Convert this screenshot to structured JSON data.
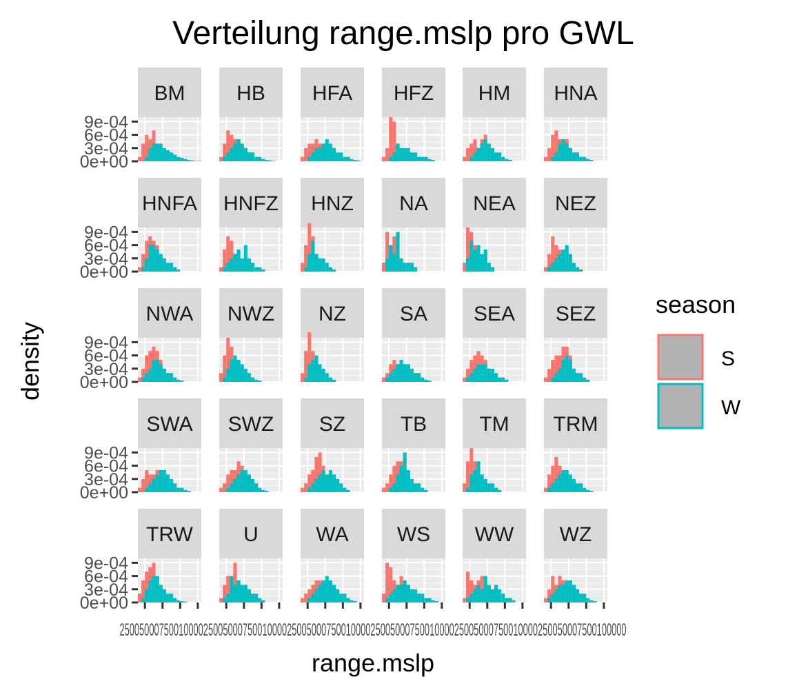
{
  "chart_data": {
    "type": "histogram",
    "title": "Verteilung range.mslp pro GWL",
    "xlabel": "range.mslp",
    "ylabel": "density",
    "x_ticks": [
      "2500",
      "5000",
      "7500",
      "10000"
    ],
    "x_ticks_rendered": "2500500075001000025005000750010000250050007500100002500500075001000025005000750010000250050007500100000",
    "y_ticks": [
      "0e+00",
      "3e-04",
      "6e-04",
      "9e-04"
    ],
    "xlim": [
      1500,
      10500
    ],
    "ylim": [
      0,
      0.001
    ],
    "grid": true,
    "facet_layout": {
      "columns": 6,
      "rows": 5
    },
    "legend": {
      "title": "season",
      "placement": "right",
      "entries": [
        {
          "label": "S",
          "color": "#F8766D"
        },
        {
          "label": "W",
          "color": "#00BFC4"
        }
      ]
    },
    "bin_start": 1500,
    "bin_width": 500,
    "panels": [
      {
        "label": "BM",
        "S": [
          0.0001,
          0.0004,
          0.0006,
          0.0005,
          0.0007,
          0.0004,
          0.0003,
          0.0002,
          0.0001,
          5e-05
        ],
        "W": [
          0,
          0,
          0.0001,
          0.0003,
          0.0004,
          0.0004,
          0.0004,
          0.0003,
          0.00025,
          0.0002,
          0.00015,
          0.0001,
          8e-05,
          5e-05,
          3e-05,
          2e-05,
          1e-05,
          1e-05
        ]
      },
      {
        "label": "HB",
        "S": [
          0.0001,
          0.0004,
          0.0007,
          0.0006,
          0.0005,
          0.0005,
          0.0004,
          0.0003,
          0.0002,
          0.0001
        ],
        "W": [
          0,
          0.0001,
          0.0002,
          0.0003,
          0.0004,
          0.0005,
          0.0004,
          0.0003,
          0.0002,
          0.0002,
          0.0001,
          0.0001,
          5e-05,
          3e-05,
          2e-05,
          1e-05
        ]
      },
      {
        "label": "HFA",
        "S": [
          0.0001,
          0.0003,
          0.0004,
          0.0004,
          0.0005,
          0.0004,
          0.0004,
          0.0003,
          0.0002,
          0.0001
        ],
        "W": [
          0,
          0,
          0.0001,
          0.0002,
          0.0003,
          0.0003,
          0.0004,
          0.0005,
          0.0004,
          0.0003,
          0.0002,
          0.0002,
          0.0001,
          0.0001,
          5e-05,
          3e-05,
          2e-05
        ]
      },
      {
        "label": "HFZ",
        "S": [
          0.0001,
          0.0003,
          0.001,
          0.0009,
          0.0004,
          0.0003,
          0.0002,
          0.0002,
          0.0001
        ],
        "W": [
          0,
          0,
          0.0001,
          0.0002,
          0.0004,
          0.0003,
          0.0003,
          0.0003,
          0.0002,
          0.0002,
          0.0001,
          0.0001,
          0.0001,
          5e-05,
          3e-05
        ]
      },
      {
        "label": "HM",
        "S": [
          0.0001,
          0.0003,
          0.0004,
          0.0005,
          0.0003,
          0.0005,
          0.0006,
          0.0003,
          0.0002,
          0.0001
        ],
        "W": [
          0,
          0,
          0.0001,
          0.0002,
          0.0003,
          0.0004,
          0.0005,
          0.0004,
          0.0003,
          0.0002,
          0.0002,
          0.0001,
          5e-05,
          3e-05
        ]
      },
      {
        "label": "HNA",
        "S": [
          0.0001,
          0.0003,
          0.0006,
          0.0007,
          0.0005,
          0.0005,
          0.0005,
          0.0003,
          0.0002,
          0.0001
        ],
        "W": [
          0,
          0,
          0.0001,
          0.0002,
          0.0004,
          0.0005,
          0.0004,
          0.0003,
          0.0002,
          0.0002,
          0.0001,
          0.0001,
          5e-05,
          3e-05
        ]
      },
      {
        "label": "HNFA",
        "S": [
          0.0001,
          0.0004,
          0.0007,
          0.0008,
          0.0007,
          0.0006,
          0.0004,
          0.0003,
          0.0002
        ],
        "W": [
          0,
          0.0001,
          0.0003,
          0.0006,
          0.0006,
          0.0005,
          0.0004,
          0.0003,
          0.0002,
          0.0002,
          0.0001,
          5e-05
        ]
      },
      {
        "label": "HNFZ",
        "S": [
          0.0001,
          0.0005,
          0.0008,
          0.0007,
          0.0004,
          0.0003,
          0.0002
        ],
        "W": [
          0,
          0.0001,
          0.0002,
          0.0003,
          0.0004,
          0.0005,
          0.0003,
          0.0006,
          0.0003,
          0.0002,
          0.0001,
          0.0001,
          5e-05
        ]
      },
      {
        "label": "HNZ",
        "S": [
          0.0002,
          0.0006,
          0.0011,
          0.0008,
          0.0004,
          0.0002
        ],
        "W": [
          0,
          0.0001,
          0.0004,
          0.0007,
          0.0004,
          0.0003,
          0.0003,
          0.0002,
          0.0001,
          5e-05
        ]
      },
      {
        "label": "NA",
        "S": [
          0.0002,
          0.0009,
          0.0006,
          0.0008,
          0.0004,
          0.0003
        ],
        "W": [
          0,
          0.0003,
          0.0006,
          0.0004,
          0.0009,
          0.0003,
          0.0002,
          0.0002,
          0.0002,
          0.0001
        ]
      },
      {
        "label": "NEA",
        "S": [
          0.0002,
          0.001,
          0.0009,
          0.0006,
          0.0003
        ],
        "W": [
          0,
          0.0003,
          0.0007,
          0.0005,
          0.0006,
          0.0004,
          0.0005,
          0.0002,
          0.0001
        ]
      },
      {
        "label": "NEZ",
        "S": [
          0.0001,
          0.0004,
          0.0008,
          0.0006,
          0.0005,
          0.0003,
          0.0002
        ],
        "W": [
          0,
          0.0001,
          0.0002,
          0.0003,
          0.0004,
          0.0005,
          0.0006,
          0.0004,
          0.0002,
          0.0001,
          5e-05
        ]
      },
      {
        "label": "NWA",
        "S": [
          0.0001,
          0.0003,
          0.0006,
          0.0007,
          0.0008,
          0.0007,
          0.0005,
          0.0003,
          0.0002
        ],
        "W": [
          0,
          0.0001,
          0.0002,
          0.0003,
          0.0005,
          0.0005,
          0.0004,
          0.0003,
          0.0002,
          0.0002,
          0.0001,
          5e-05,
          3e-05
        ]
      },
      {
        "label": "NWZ",
        "S": [
          0.0002,
          0.0006,
          0.001,
          0.0008,
          0.0005,
          0.0003,
          0.0002
        ],
        "W": [
          0,
          0.0001,
          0.0003,
          0.0005,
          0.0006,
          0.0005,
          0.0004,
          0.0003,
          0.0002,
          0.0001,
          5e-05,
          3e-05
        ]
      },
      {
        "label": "NZ",
        "S": [
          0.0002,
          0.0007,
          0.0012,
          0.0007,
          0.0004,
          0.0002
        ],
        "W": [
          0,
          0.0001,
          0.0004,
          0.0005,
          0.0006,
          0.0004,
          0.0003,
          0.0002,
          0.0001,
          5e-05
        ]
      },
      {
        "label": "SA",
        "S": [
          0.0001,
          0.0002,
          0.0004,
          0.0005,
          0.0004,
          0.0005,
          0.0004,
          0.0004,
          0.0003,
          0.0002
        ],
        "W": [
          0,
          0.0001,
          0.0002,
          0.0003,
          0.0004,
          0.0005,
          0.0004,
          0.0004,
          0.0003,
          0.0002,
          0.0002,
          0.0001,
          5e-05,
          3e-05
        ]
      },
      {
        "label": "SEA",
        "S": [
          0.0001,
          0.0003,
          0.0005,
          0.0006,
          0.0007,
          0.0006,
          0.0005,
          0.0003,
          0.0002
        ],
        "W": [
          0,
          0.0001,
          0.0002,
          0.0003,
          0.0004,
          0.0004,
          0.0004,
          0.0003,
          0.0003,
          0.0002,
          0.0001,
          0.0001,
          5e-05
        ]
      },
      {
        "label": "SEZ",
        "S": [
          0.0001,
          0.0003,
          0.0005,
          0.0006,
          0.0006,
          0.0008,
          0.0008,
          0.0006,
          0.0003,
          0.0002
        ],
        "W": [
          0,
          0,
          0.0001,
          0.0002,
          0.0003,
          0.0005,
          0.0006,
          0.0005,
          0.0003,
          0.0002,
          0.0002,
          0.0001,
          5e-05
        ]
      },
      {
        "label": "SWA",
        "S": [
          0.0001,
          0.0003,
          0.0005,
          0.0004,
          0.0004,
          0.0005,
          0.0005,
          0.0004,
          0.0003,
          0.0002
        ],
        "W": [
          0,
          0,
          0.0001,
          0.0002,
          0.0003,
          0.0004,
          0.0005,
          0.0005,
          0.0004,
          0.0003,
          0.0002,
          0.0001,
          0.0001,
          5e-05,
          3e-05
        ]
      },
      {
        "label": "SWZ",
        "S": [
          0.0001,
          0.0002,
          0.0004,
          0.0005,
          0.0005,
          0.0007,
          0.0006,
          0.0004,
          0.0003,
          0.0002
        ],
        "W": [
          0,
          0,
          0.0001,
          0.0002,
          0.0003,
          0.0004,
          0.0005,
          0.0005,
          0.0004,
          0.0003,
          0.0002,
          0.0001,
          5e-05,
          3e-05
        ]
      },
      {
        "label": "SZ",
        "S": [
          0.0001,
          0.0002,
          0.0004,
          0.0005,
          0.0008,
          0.0009,
          0.0006,
          0.0003
        ],
        "W": [
          0,
          0,
          0.0001,
          0.0002,
          0.0003,
          0.0004,
          0.0005,
          0.0004,
          0.0005,
          0.0004,
          0.0003,
          0.0002,
          0.0001,
          5e-05
        ]
      },
      {
        "label": "TB",
        "S": [
          0.0001,
          0.0002,
          0.0004,
          0.0006,
          0.0007,
          0.0007,
          0.0005,
          0.0003
        ],
        "W": [
          0,
          0,
          0.0001,
          0.0002,
          0.0004,
          0.0006,
          0.0009,
          0.0005,
          0.0003,
          0.0002,
          0.0002,
          0.0001,
          5e-05
        ]
      },
      {
        "label": "TM",
        "S": [
          0.0002,
          0.0007,
          0.001,
          0.0007,
          0.0005,
          0.0004,
          0.0002
        ],
        "W": [
          0,
          0.0001,
          0.0004,
          0.0005,
          0.0007,
          0.0004,
          0.0003,
          0.0002,
          0.0002,
          0.0001,
          5e-05
        ]
      },
      {
        "label": "TRM",
        "S": [
          0.0001,
          0.0004,
          0.0006,
          0.0008,
          0.0006,
          0.0004,
          0.0003,
          0.0002
        ],
        "W": [
          0,
          0.0001,
          0.0002,
          0.0003,
          0.0004,
          0.0005,
          0.0005,
          0.0004,
          0.0003,
          0.0002,
          0.0002,
          0.0001,
          5e-05,
          3e-05
        ]
      },
      {
        "label": "TRW",
        "S": [
          0.0002,
          0.0005,
          0.0007,
          0.0008,
          0.0009,
          0.0006,
          0.0004,
          0.0003,
          0.0002
        ],
        "W": [
          0,
          0.0001,
          0.0003,
          0.0005,
          0.0006,
          0.0006,
          0.0004,
          0.0003,
          0.0002,
          0.0002,
          0.0001,
          5e-05,
          3e-05,
          2e-05
        ]
      },
      {
        "label": "U",
        "S": [
          0.0001,
          0.0004,
          0.0006,
          0.0004,
          0.0009,
          0.0005,
          0.0003,
          0.0002
        ],
        "W": [
          0,
          0.0001,
          0.0002,
          0.0006,
          0.0004,
          0.0005,
          0.0004,
          0.0004,
          0.0003,
          0.0002,
          0.0002,
          0.0001,
          5e-05
        ]
      },
      {
        "label": "WA",
        "S": [
          0.0001,
          0.0002,
          0.0003,
          0.0004,
          0.0005,
          0.0005,
          0.0004,
          0.0003,
          0.0002
        ],
        "W": [
          0,
          0,
          0.0001,
          0.0002,
          0.0003,
          0.0004,
          0.0005,
          0.0006,
          0.0005,
          0.0004,
          0.0003,
          0.0002,
          0.0002,
          0.0001,
          5e-05,
          3e-05
        ]
      },
      {
        "label": "WS",
        "S": [
          0.0002,
          0.0009,
          0.0008,
          0.0005,
          0.0004,
          0.0006,
          0.0005,
          0.0004,
          0.0003,
          0.0002
        ],
        "W": [
          0,
          0.0001,
          0.0002,
          0.0003,
          0.0004,
          0.0004,
          0.0005,
          0.0004,
          0.0003,
          0.0003,
          0.0002,
          0.0002,
          0.0001,
          0.0001,
          5e-05,
          3e-05
        ]
      },
      {
        "label": "WW",
        "S": [
          0.0001,
          0.0007,
          0.0005,
          0.0004,
          0.0005,
          0.0006,
          0.0004,
          0.0003,
          0.0002
        ],
        "W": [
          0,
          0.0001,
          0.0002,
          0.0003,
          0.0004,
          0.0003,
          0.0006,
          0.0004,
          0.0003,
          0.0004,
          0.0003,
          0.0002,
          0.0001,
          0.0001,
          5e-05
        ]
      },
      {
        "label": "WZ",
        "S": [
          0.0001,
          0.0003,
          0.0006,
          0.0004,
          0.0006,
          0.0005,
          0.0004,
          0.0003,
          0.0002
        ],
        "W": [
          0,
          0.0001,
          0.0002,
          0.0003,
          0.0004,
          0.0004,
          0.0005,
          0.0005,
          0.0004,
          0.0003,
          0.0002,
          0.0002,
          0.0001,
          5e-05,
          3e-05
        ]
      }
    ]
  }
}
